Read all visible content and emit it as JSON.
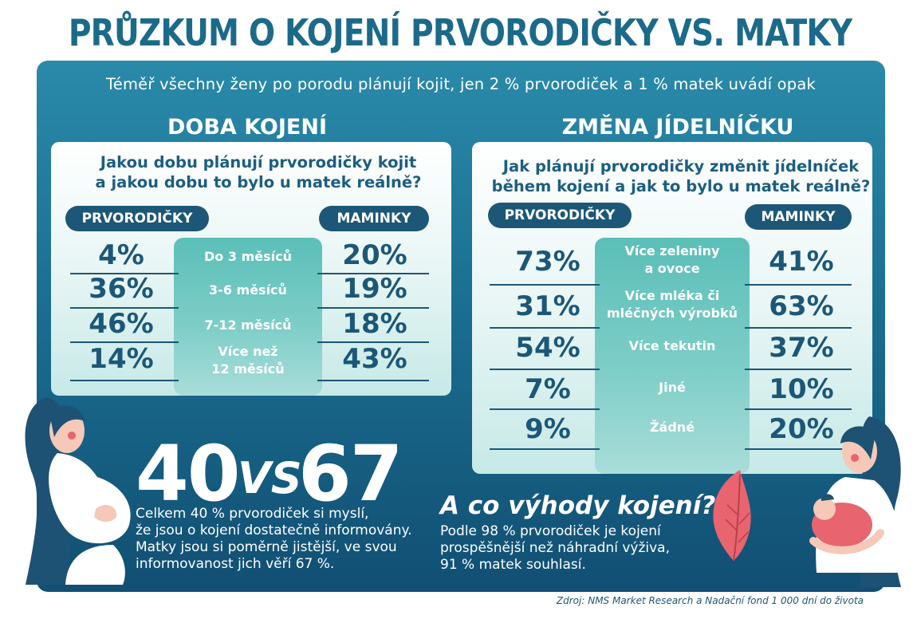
{
  "title": "PRŮZKUM O KOJENÍ PRVORODIČKY VS. MATKY",
  "intro": "Téměř všechny ženy po porodu plánují kojit, jen 2 % prvorodiček a 1 % matek uvádí opak",
  "chart_data": [
    {
      "type": "table",
      "title": "DOBA KOJENÍ",
      "subtitle": "Jakou dobu plánují prvorodičky kojit\na jakou dobu to bylo u matek reálně?",
      "categories": [
        "Do 3 měsíců",
        "3-6 měsíců",
        "7-12 měsíců",
        "Více než\n12 měsíců"
      ],
      "series": [
        {
          "name": "PRVORODIČKY",
          "values": [
            4,
            36,
            46,
            14
          ],
          "labels": [
            "4%",
            "36%",
            "46%",
            "14%"
          ]
        },
        {
          "name": "MAMINKY",
          "values": [
            20,
            19,
            18,
            43
          ],
          "labels": [
            "20%",
            "19%",
            "18%",
            "43%"
          ]
        }
      ]
    },
    {
      "type": "table",
      "title": "ZMĚNA JÍDELNÍČKU",
      "subtitle": "Jak plánují prvorodičky změnit jídelníček\nběhem kojení a jak to bylo u matek reálně?",
      "categories": [
        "Více zeleniny\na ovoce",
        "Více mléka či\nmléčných výrobků",
        "Více tekutin",
        "Jiné",
        "Žádné"
      ],
      "series": [
        {
          "name": "PRVORODIČKY",
          "values": [
            73,
            31,
            54,
            7,
            9
          ],
          "labels": [
            "73%",
            "31%",
            "54%",
            "7%",
            "9%"
          ]
        },
        {
          "name": "MAMINKY",
          "values": [
            41,
            63,
            37,
            10,
            20
          ],
          "labels": [
            "41%",
            "63%",
            "37%",
            "10%",
            "20%"
          ]
        }
      ]
    }
  ],
  "informed": {
    "left": "40",
    "vs": "VS",
    "right": "67",
    "text": "Celkem 40 % prvorodiček si myslí,\nže jsou o kojení dostatečně informovány.\nMatky jsou si poměrně jistější, ve svou\ninformovanost jich věří 67 %."
  },
  "benefits": {
    "title": "A co výhody kojení?",
    "text": "Podle 98 % prvorodiček je kojení\nprospěšnější než náhradní výživa,\n91 % matek souhlasí."
  },
  "source": "Zdroj: NMS Market Research a Nadační fond 1 000 dní do života",
  "colors": {
    "title": "#1c6a8a",
    "panel_top": "#2a8aa9",
    "panel_bottom": "#114f73",
    "navy": "#1c5777",
    "teal": "#5bbfb8",
    "skin": "#f5c8b8",
    "hair": "#1d5274",
    "leaf": "#e8646e"
  }
}
